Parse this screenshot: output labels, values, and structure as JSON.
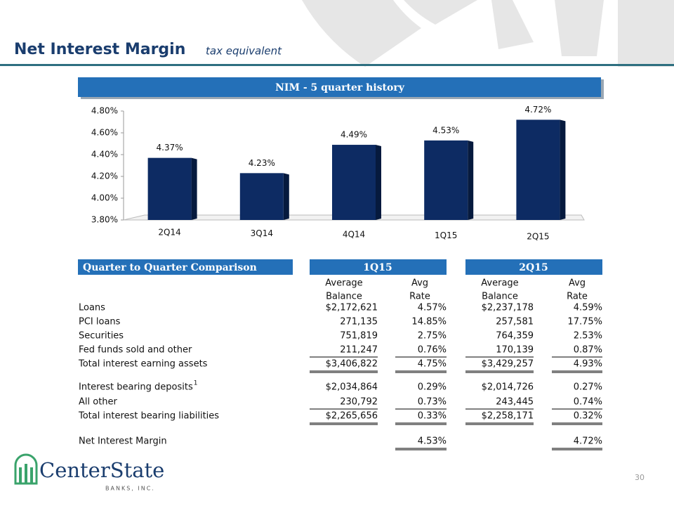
{
  "header": {
    "title": "Net Interest Margin",
    "subtitle": "tax equivalent"
  },
  "chart_data": {
    "type": "bar",
    "title": "NIM - 5 quarter history",
    "categories": [
      "2Q14",
      "3Q14",
      "4Q14",
      "1Q15",
      "2Q15"
    ],
    "values": [
      4.37,
      4.23,
      4.49,
      4.53,
      4.72
    ],
    "value_labels": [
      "4.37%",
      "4.23%",
      "4.49%",
      "4.53%",
      "4.72%"
    ],
    "color": "#0d2b63",
    "ylim": [
      3.8,
      4.8
    ],
    "yticks": [
      {
        "value": 3.8,
        "label": "3.80%"
      },
      {
        "value": 4.0,
        "label": "4.00%"
      },
      {
        "value": 4.2,
        "label": "4.20%"
      },
      {
        "value": 4.4,
        "label": "4.40%"
      },
      {
        "value": 4.6,
        "label": "4.60%"
      },
      {
        "value": 4.8,
        "label": "4.80%"
      }
    ]
  },
  "table": {
    "title": "Quarter to Quarter Comparison",
    "periods": [
      "1Q15",
      "2Q15"
    ],
    "column_headers": [
      [
        "Average",
        "Balance"
      ],
      [
        "Avg",
        "Rate"
      ],
      [
        "Average",
        "Balance"
      ],
      [
        "Avg",
        "Rate"
      ]
    ],
    "rows": [
      {
        "label": "Loans",
        "cells": [
          "$2,172,621",
          "4.57%",
          "$2,237,178",
          "4.59%"
        ]
      },
      {
        "label": "PCI loans",
        "cells": [
          "271,135",
          "14.85%",
          "257,581",
          "17.75%"
        ]
      },
      {
        "label": "Securities",
        "cells": [
          "751,819",
          "2.75%",
          "764,359",
          "2.53%"
        ]
      },
      {
        "label": "Fed funds sold and other",
        "cells": [
          "211,247",
          "0.76%",
          "170,139",
          "0.87%"
        ]
      },
      {
        "label": "Total interest earning assets",
        "cells": [
          "$3,406,822",
          "4.75%",
          "$3,429,257",
          "4.93%"
        ]
      },
      {
        "label": "Interest bearing deposits",
        "note": "1",
        "cells": [
          "$2,034,864",
          "0.29%",
          "$2,014,726",
          "0.27%"
        ]
      },
      {
        "label": "All other",
        "cells": [
          "230,792",
          "0.73%",
          "243,445",
          "0.74%"
        ]
      },
      {
        "label": "Total interest bearing liabilities",
        "cells": [
          "$2,265,656",
          "0.33%",
          "$2,258,171",
          "0.32%"
        ]
      },
      {
        "label": "Net Interest Margin",
        "cells": [
          null,
          "4.53%",
          null,
          "4.72%"
        ]
      }
    ]
  },
  "footer": {
    "logo": "CenterState",
    "logo_sub": "BANKS, INC.",
    "page": "30"
  }
}
